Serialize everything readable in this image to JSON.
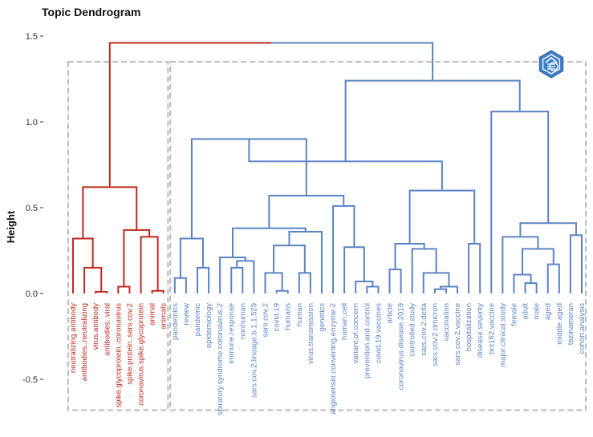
{
  "chart_data": {
    "type": "dendrogram",
    "title": "Topic Dendrogram",
    "ylabel": "Height",
    "xlabel": "",
    "ylim": [
      -0.65,
      1.55
    ],
    "yticks": [
      {
        "value": 1.5,
        "label": "1.5"
      },
      {
        "value": 1.0,
        "label": "1.0"
      },
      {
        "value": 0.5,
        "label": "0.5"
      },
      {
        "value": 0.0,
        "label": "0.0"
      },
      {
        "value": -0.5,
        "label": "-0.5"
      }
    ],
    "colors": {
      "cluster1": "#C0281F",
      "cluster2": "#5B83C3",
      "box": "#BBBBBB"
    },
    "icon": "hexagon-logo-icon",
    "leaves": [
      "neutralizing.antibody",
      "antibodies..neutralizing",
      "virus.antibody",
      "antibodies..viral",
      "spike.glycoprotein..coronavirus",
      "spike.protein..sars.cov.2",
      "coronavirus.spike.glycoprotein",
      "animal",
      "animals",
      "pandemics",
      "review",
      "pandemic",
      "epidemiology",
      "spiratory.syndrome.coronavirus.2",
      "immune.response",
      "nonhuman",
      "sars.cov.2.lineage.b.1.1.529",
      "sars.cov.2",
      "covid.19",
      "humans",
      "human",
      "virus.transmission",
      "genetics",
      "angiotensin.converting.enzyme.2",
      "human.cell",
      "variant.of.concern",
      "prevention.and.control",
      "covid.19.vaccines",
      "article",
      "coronavirus.disease.2019",
      "controlled.study",
      "sars.cov.2.delta",
      "sars.cov.2.omicron",
      "vaccination",
      "sars.cov.2.vaccine",
      "hospitalization",
      "disease.severity",
      "bnt162.vaccine",
      "major.clinical.study",
      "female",
      "adult",
      "male",
      "aged",
      "middle.aged",
      "tozinameran",
      "cohort.analysis"
    ],
    "leaf_cluster": [
      1,
      1,
      1,
      1,
      1,
      1,
      1,
      1,
      1,
      2,
      2,
      2,
      2,
      2,
      2,
      2,
      2,
      2,
      2,
      2,
      2,
      2,
      2,
      2,
      2,
      2,
      2,
      2,
      2,
      2,
      2,
      2,
      2,
      2,
      2,
      2,
      2,
      2,
      2,
      2,
      2,
      2,
      2,
      2,
      2,
      2
    ],
    "merges": [
      {
        "a": "L2",
        "b": "L3",
        "height": 0.01
      },
      {
        "a": "L1",
        "b": "M1",
        "height": 0.15
      },
      {
        "a": "L0",
        "b": "M2",
        "height": 0.32
      },
      {
        "a": "L7",
        "b": "L8",
        "height": 0.015
      },
      {
        "a": "L6",
        "b": "M4",
        "height": 0.33
      },
      {
        "a": "L4",
        "b": "L5",
        "height": 0.04
      },
      {
        "a": "M6",
        "b": "M5",
        "height": 0.37
      },
      {
        "a": "M3",
        "b": "M7",
        "height": 0.62
      },
      {
        "a": "L9",
        "b": "L10",
        "height": 0.09
      },
      {
        "a": "L11",
        "b": "L12",
        "height": 0.15
      },
      {
        "a": "M9",
        "b": "M10",
        "height": 0.32
      },
      {
        "a": "L14",
        "b": "L15",
        "height": 0.15
      },
      {
        "a": "M12",
        "b": "L16",
        "height": 0.19
      },
      {
        "a": "L13",
        "b": "M13",
        "height": 0.21
      },
      {
        "a": "L18",
        "b": "L19",
        "height": 0.015
      },
      {
        "a": "L17",
        "b": "M15",
        "height": 0.12
      },
      {
        "a": "L20",
        "b": "L21",
        "height": 0.12
      },
      {
        "a": "M16",
        "b": "M17",
        "height": 0.28
      },
      {
        "a": "M18",
        "b": "L22",
        "height": 0.36
      },
      {
        "a": "M14",
        "b": "M19",
        "height": 0.38
      },
      {
        "a": "L26",
        "b": "L27",
        "height": 0.04
      },
      {
        "a": "M21",
        "b": "L25",
        "height": 0.07
      },
      {
        "a": "L24",
        "b": "M22",
        "height": 0.27
      },
      {
        "a": "M23",
        "b": "L23",
        "height": 0.51
      },
      {
        "a": "M20",
        "b": "M24",
        "height": 0.57
      },
      {
        "a": "M11",
        "b": "M25",
        "height": 0.9
      },
      {
        "a": "L28",
        "b": "L29",
        "height": 0.14
      },
      {
        "a": "L32",
        "b": "L33",
        "height": 0.025
      },
      {
        "a": "M28",
        "b": "L34",
        "height": 0.04
      },
      {
        "a": "L31",
        "b": "M29",
        "height": 0.12
      },
      {
        "a": "L30",
        "b": "M30",
        "height": 0.26
      },
      {
        "a": "M27",
        "b": "M31",
        "height": 0.29
      },
      {
        "a": "L35",
        "b": "L36",
        "height": 0.29
      },
      {
        "a": "M32",
        "b": "M33",
        "height": 0.6
      },
      {
        "a": "M26",
        "b": "M34",
        "height": 0.77
      },
      {
        "a": "L40",
        "b": "L41",
        "height": 0.06
      },
      {
        "a": "L39",
        "b": "M36",
        "height": 0.11
      },
      {
        "a": "L42",
        "b": "L43",
        "height": 0.17
      },
      {
        "a": "M37",
        "b": "M38",
        "height": 0.26
      },
      {
        "a": "L38",
        "b": "M39",
        "height": 0.33
      },
      {
        "a": "L44",
        "b": "L45",
        "height": 0.34
      },
      {
        "a": "M40",
        "b": "M41",
        "height": 0.41
      },
      {
        "a": "L37",
        "b": "M42",
        "height": 1.06
      },
      {
        "a": "M35",
        "b": "M43",
        "height": 1.24
      },
      {
        "a": "M8",
        "b": "M44",
        "height": 1.46
      }
    ],
    "cluster_boxes": [
      {
        "from_leaf": 0,
        "to_leaf": 8,
        "cluster": 1
      },
      {
        "from_leaf": 9,
        "to_leaf": 45,
        "cluster": 2
      }
    ],
    "box_bottom": -0.68,
    "box_top": 1.35,
    "split_height": 0.72
  }
}
